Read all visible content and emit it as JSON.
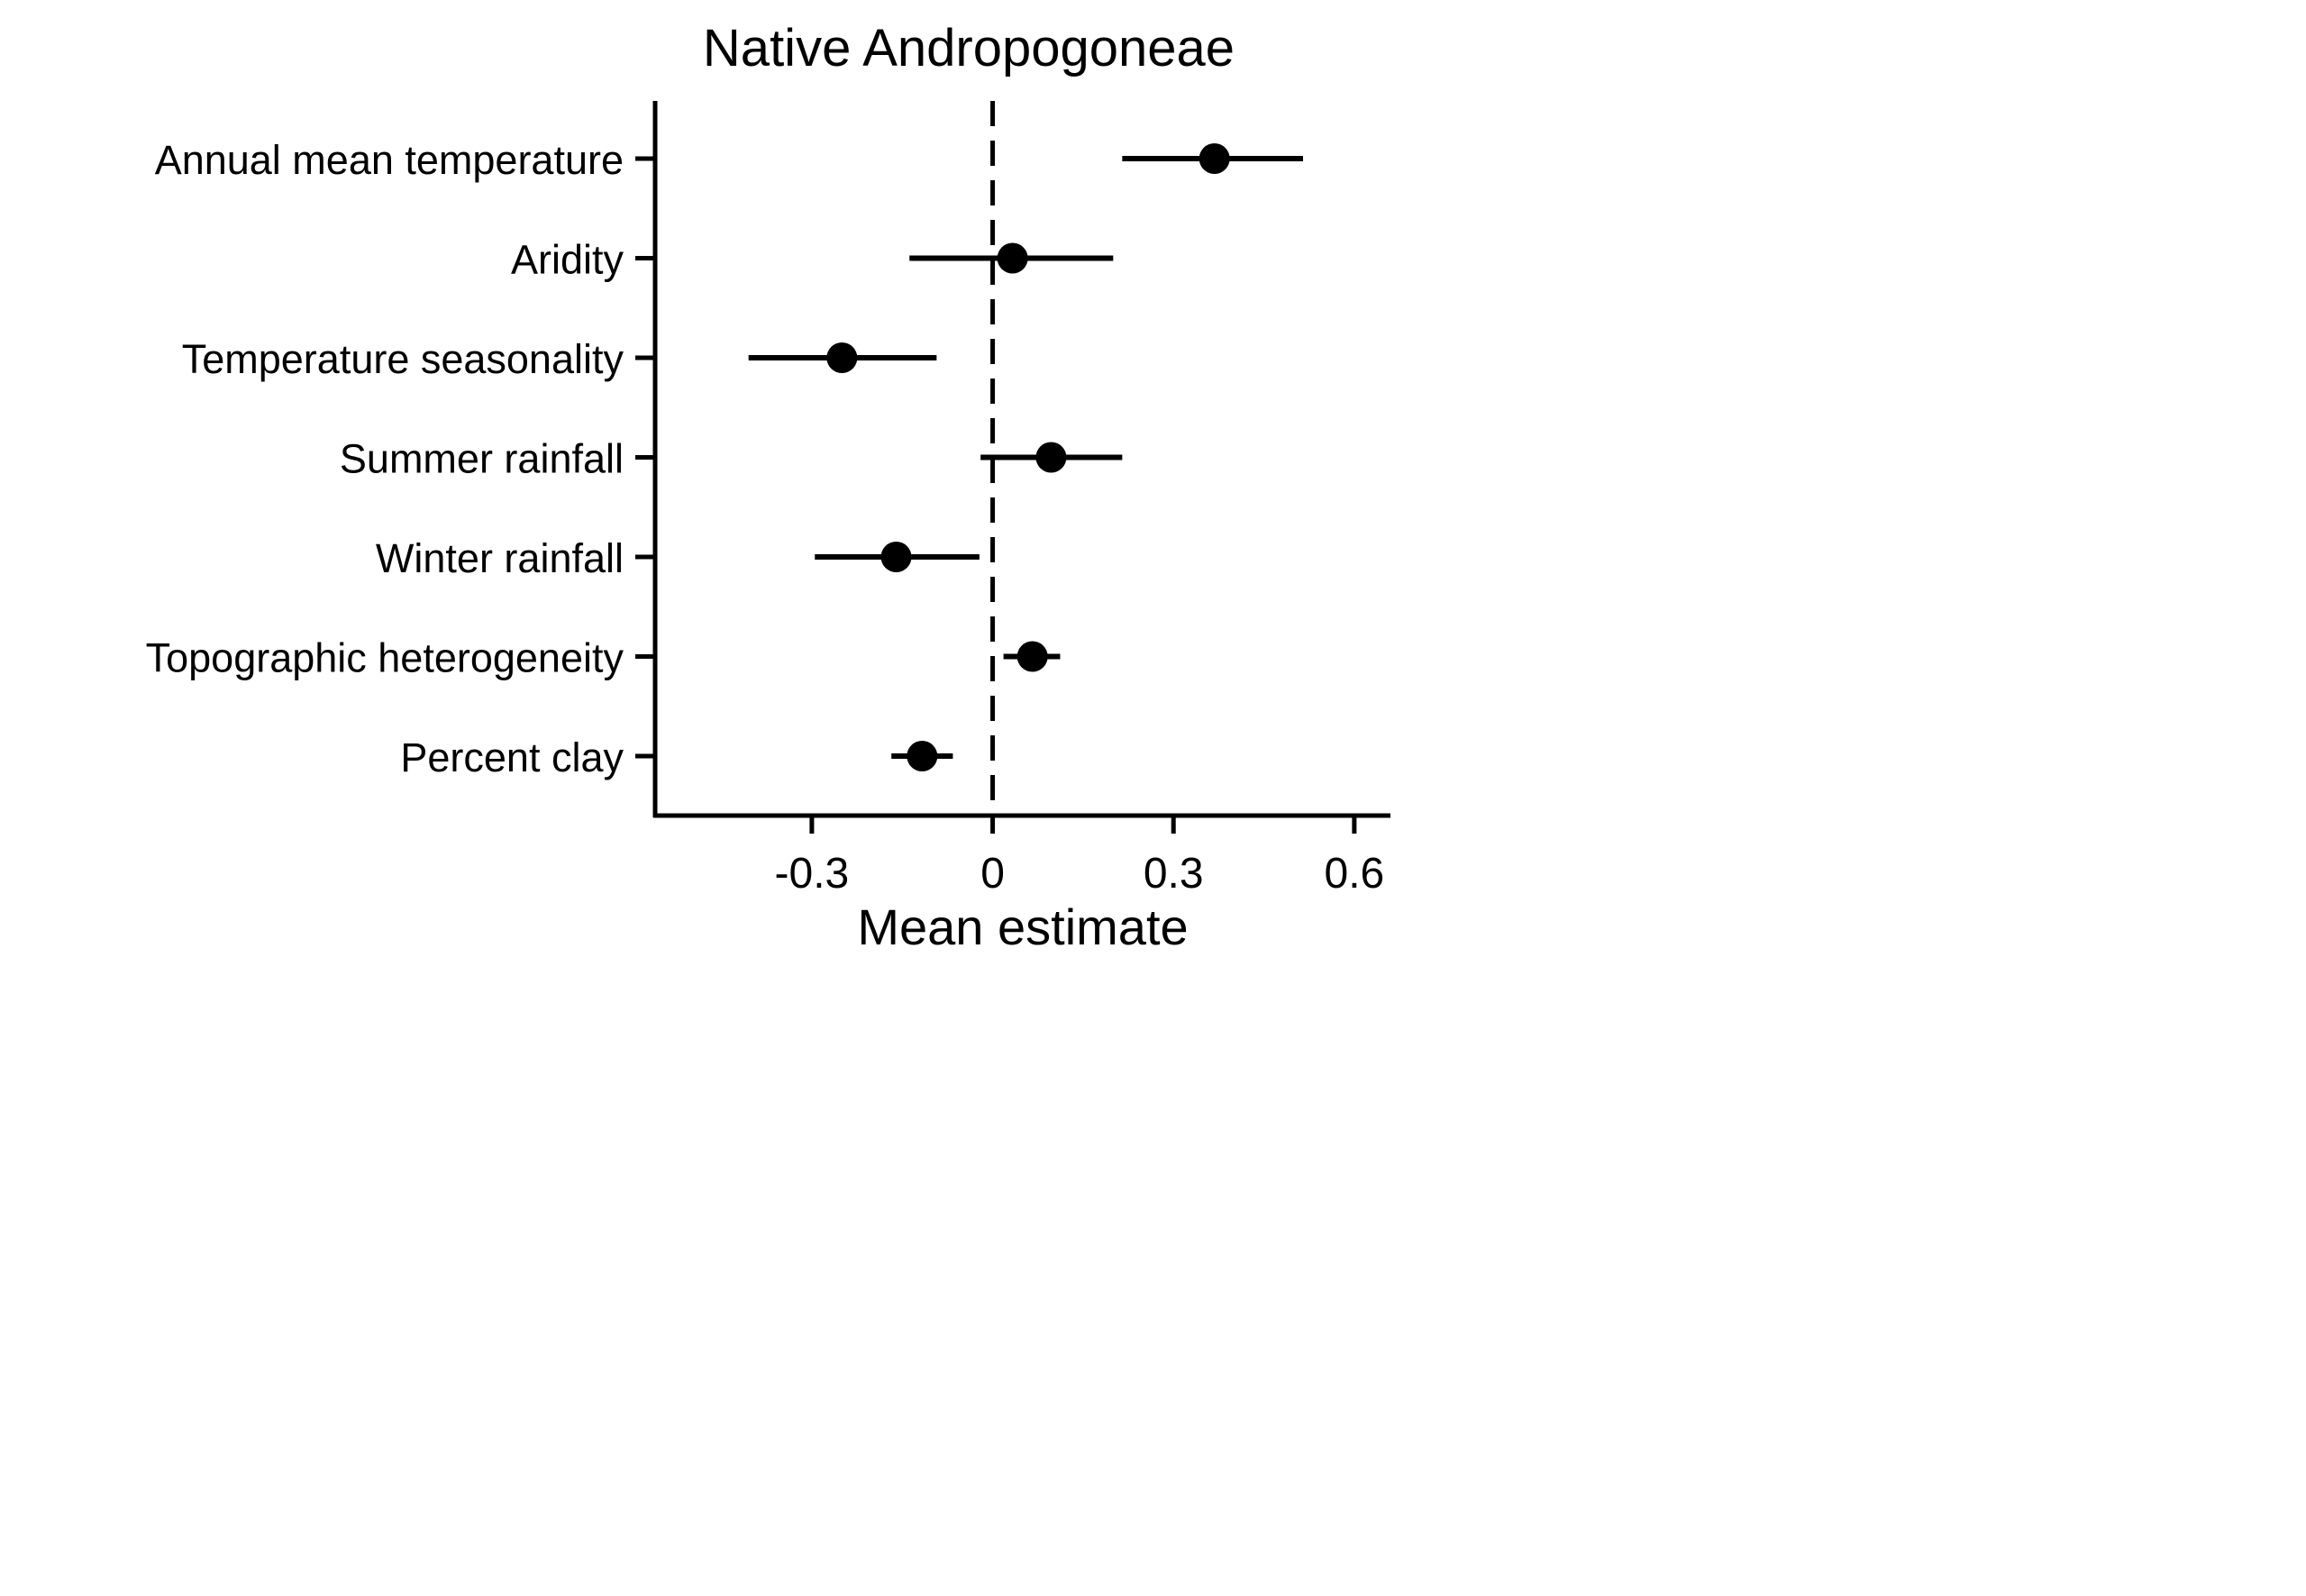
{
  "chart_data": {
    "type": "scatter",
    "title": "Native Andropogoneae",
    "xlabel": "Mean estimate",
    "ylabel": "",
    "xlim": [
      -0.56,
      0.66
    ],
    "xticks": [
      {
        "value": -0.3,
        "label": "-0.3"
      },
      {
        "value": 0,
        "label": "0"
      },
      {
        "value": 0.3,
        "label": "0.3"
      },
      {
        "value": 0.6,
        "label": "0.6"
      }
    ],
    "reference_line": {
      "x": 0,
      "style": "dashed"
    },
    "grid": false,
    "legend": "none",
    "colors": {
      "marks": "#000000",
      "background": "#ffffff"
    },
    "series": [
      {
        "points": [
          {
            "label": "Annual mean temperature",
            "estimate": 0.368,
            "lower": 0.215,
            "upper": 0.515
          },
          {
            "label": "Aridity",
            "estimate": 0.033,
            "lower": -0.138,
            "upper": 0.2
          },
          {
            "label": "Temperature seasonality",
            "estimate": -0.25,
            "lower": -0.405,
            "upper": -0.093
          },
          {
            "label": "Summer rainfall",
            "estimate": 0.097,
            "lower": -0.02,
            "upper": 0.215
          },
          {
            "label": "Winter rainfall",
            "estimate": -0.16,
            "lower": -0.295,
            "upper": -0.022
          },
          {
            "label": "Topographic heterogeneity",
            "estimate": 0.066,
            "lower": 0.018,
            "upper": 0.112
          },
          {
            "label": "Percent clay",
            "estimate": -0.117,
            "lower": -0.168,
            "upper": -0.066
          }
        ]
      }
    ]
  }
}
